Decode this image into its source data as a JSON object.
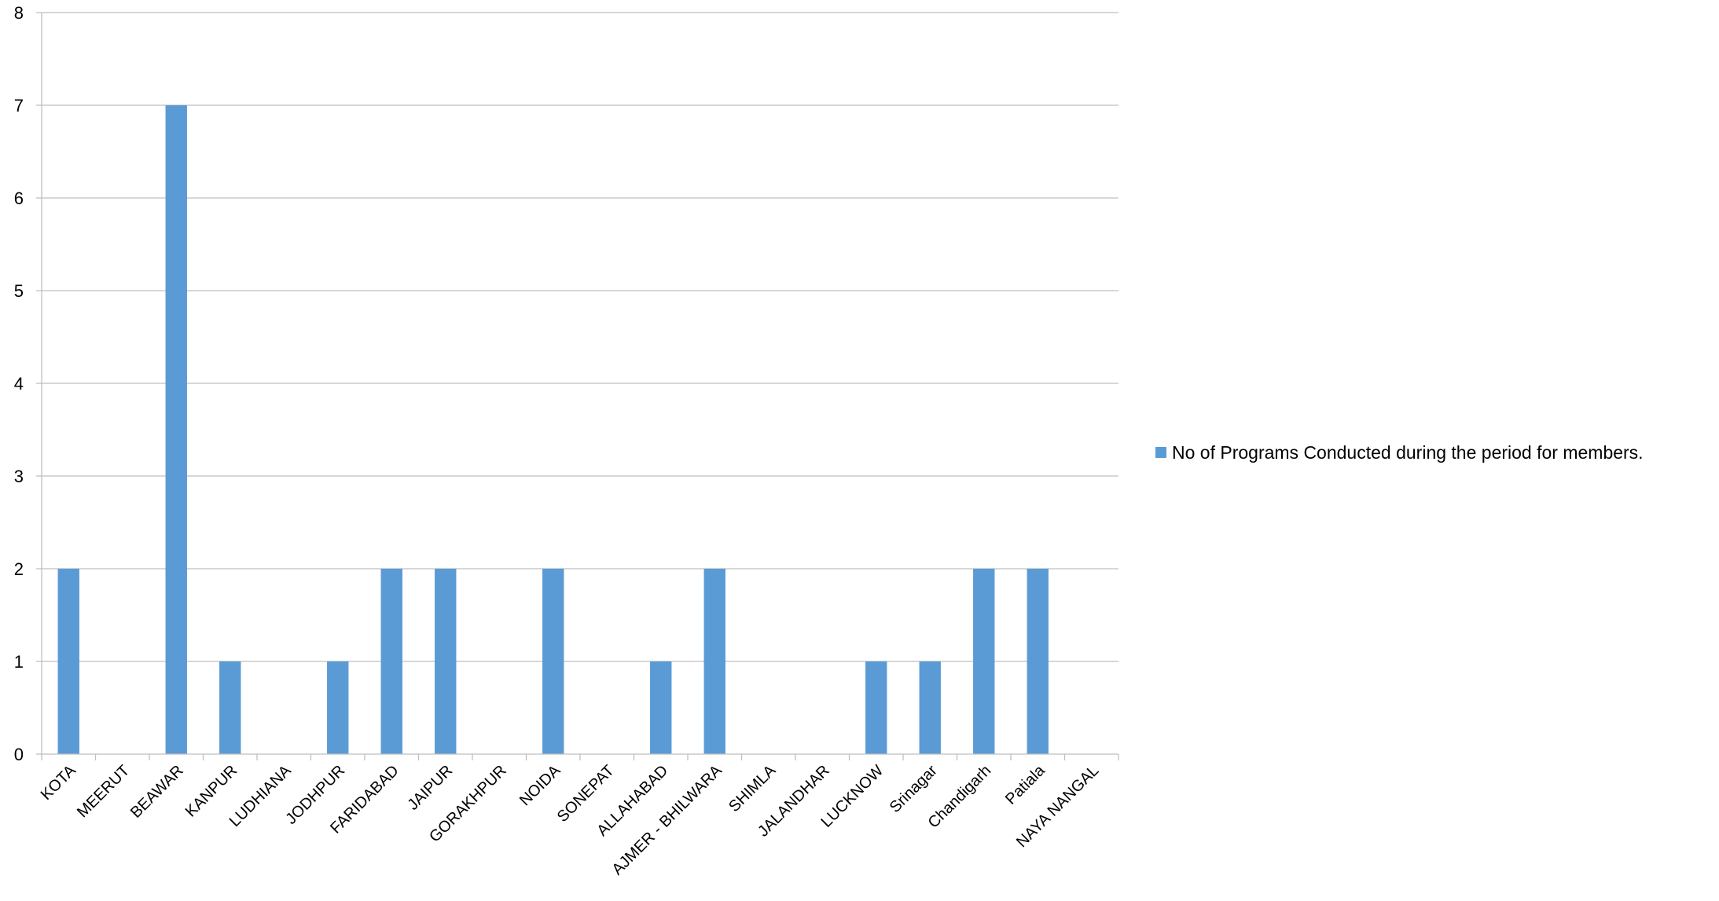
{
  "chart_data": {
    "type": "bar",
    "categories": [
      "KOTA",
      "MEERUT",
      "BEAWAR",
      "KANPUR",
      "LUDHIANA",
      "JODHPUR",
      "FARIDABAD",
      "JAIPUR",
      "GORAKHPUR",
      "NOIDA",
      "SONEPAT",
      "ALLAHABAD",
      "AJMER - BHILWARA",
      "SHIMLA",
      "JALANDHAR",
      "LUCKNOW",
      "Srinagar",
      "Chandigarh",
      "Patiala",
      "NAYA NANGAL"
    ],
    "series": [
      {
        "name": "No of Programs Conducted during the period for members.",
        "values": [
          2,
          0,
          7,
          1,
          0,
          1,
          2,
          2,
          0,
          2,
          0,
          1,
          2,
          0,
          0,
          1,
          1,
          2,
          2,
          0
        ],
        "color": "#5B9BD5"
      }
    ],
    "title": "",
    "xlabel": "",
    "ylabel": "",
    "ylim": [
      0,
      8
    ],
    "yticks": [
      "0",
      "1",
      "2",
      "3",
      "4",
      "5",
      "6",
      "7",
      "8"
    ],
    "grid": true,
    "legend_position": "right",
    "colors": {
      "bar": "#5B9BD5",
      "grid": "#BFBFBF",
      "axis": "#BFBFBF",
      "text": "#000000"
    }
  }
}
